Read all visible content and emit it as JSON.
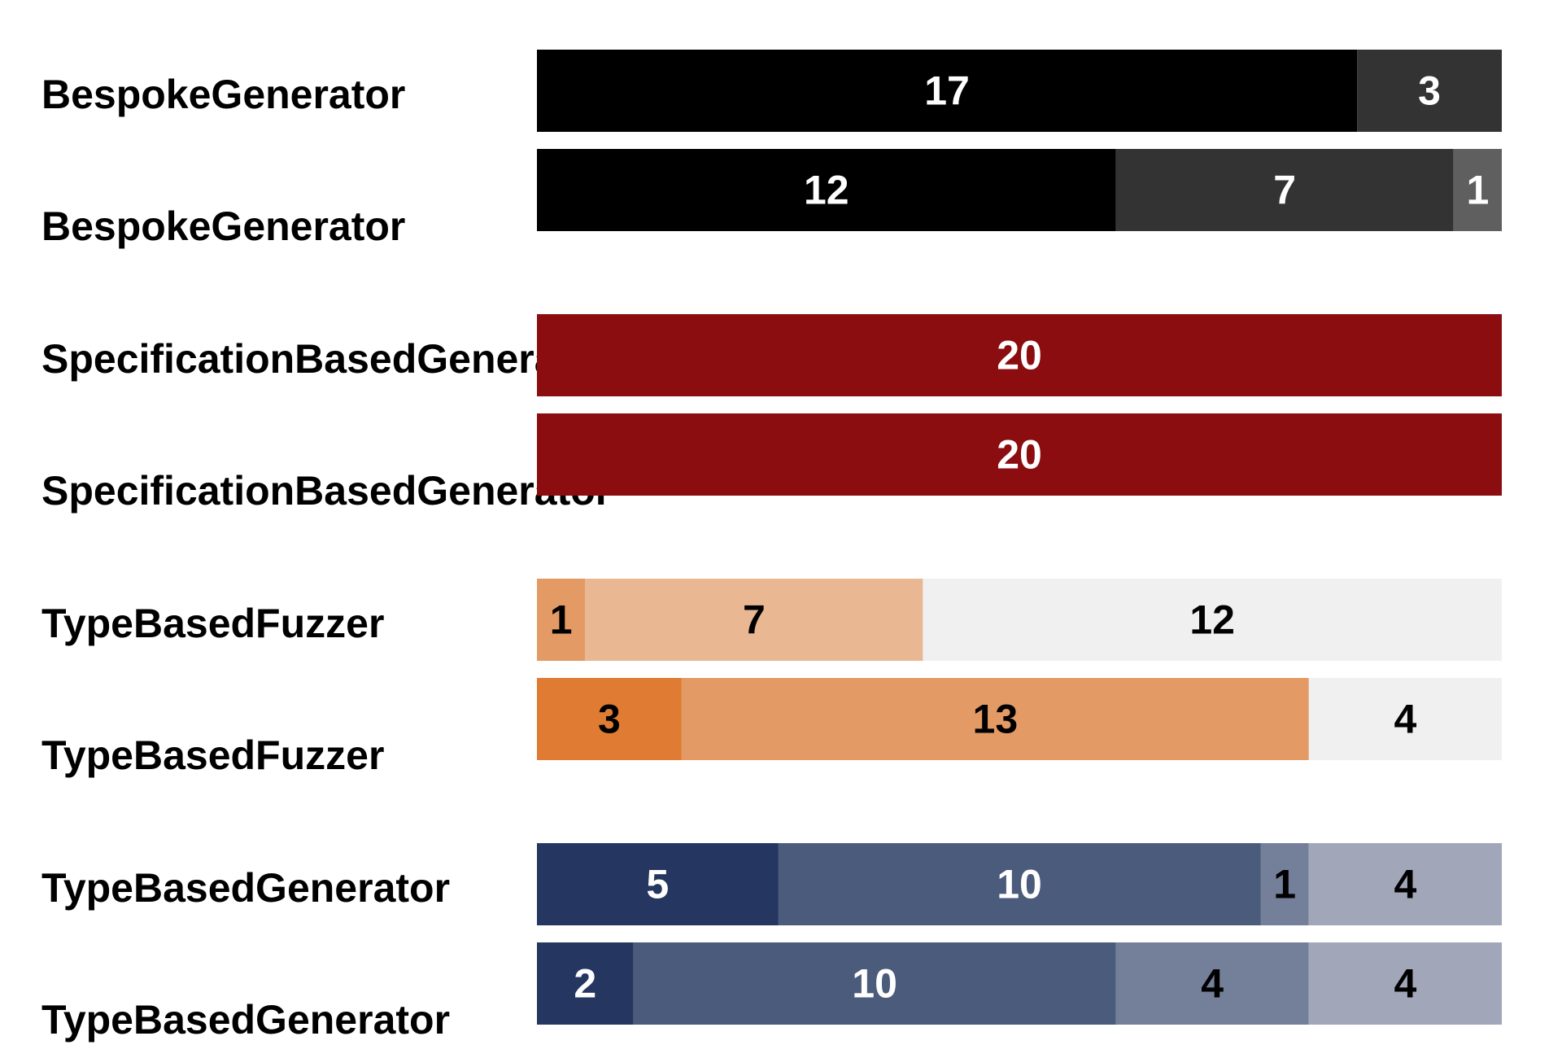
{
  "chart_data": {
    "type": "bar",
    "orientation": "horizontal",
    "stacked": true,
    "title": "",
    "xlabel": "",
    "ylabel": "",
    "xlim": [
      0,
      20
    ],
    "grid": false,
    "legend": "none",
    "rows": [
      {
        "label": "BespokeGenerator",
        "segments": [
          {
            "value": 17,
            "color": "#000000",
            "text_color": "#ffffff"
          },
          {
            "value": 3,
            "color": "#333333",
            "text_color": "#ffffff"
          }
        ]
      },
      {
        "label": "BespokeGenerator",
        "segments": [
          {
            "value": 12,
            "color": "#000000",
            "text_color": "#ffffff"
          },
          {
            "value": 7,
            "color": "#333333",
            "text_color": "#ffffff"
          },
          {
            "value": 1,
            "color": "#5f5f5f",
            "text_color": "#ffffff"
          }
        ]
      },
      {
        "label": "SpecificationBasedGenerator",
        "segments": [
          {
            "value": 20,
            "color": "#8b0d0f",
            "text_color": "#ffffff"
          }
        ]
      },
      {
        "label": "SpecificationBasedGenerator",
        "segments": [
          {
            "value": 20,
            "color": "#8b0d0f",
            "text_color": "#ffffff"
          }
        ]
      },
      {
        "label": "TypeBasedFuzzer",
        "segments": [
          {
            "value": 1,
            "color": "#e49a64",
            "text_color": "#000000"
          },
          {
            "value": 7,
            "color": "#e9b792",
            "text_color": "#000000"
          },
          {
            "value": 12,
            "color": "#f0f0f0",
            "text_color": "#000000"
          }
        ]
      },
      {
        "label": "TypeBasedFuzzer",
        "segments": [
          {
            "value": 3,
            "color": "#df7b32",
            "text_color": "#000000"
          },
          {
            "value": 13,
            "color": "#e49a64",
            "text_color": "#000000"
          },
          {
            "value": 4,
            "color": "#f0f0f0",
            "text_color": "#000000"
          }
        ]
      },
      {
        "label": "TypeBasedGenerator",
        "segments": [
          {
            "value": 5,
            "color": "#253760",
            "text_color": "#ffffff"
          },
          {
            "value": 10,
            "color": "#4b5b7c",
            "text_color": "#ffffff"
          },
          {
            "value": 1,
            "color": "#747f99",
            "text_color": "#000000"
          },
          {
            "value": 4,
            "color": "#a1a6b9",
            "text_color": "#000000"
          }
        ]
      },
      {
        "label": "TypeBasedGenerator",
        "segments": [
          {
            "value": 2,
            "color": "#253760",
            "text_color": "#ffffff"
          },
          {
            "value": 10,
            "color": "#4b5b7c",
            "text_color": "#ffffff"
          },
          {
            "value": 4,
            "color": "#747f99",
            "text_color": "#000000"
          },
          {
            "value": 4,
            "color": "#a1a6b9",
            "text_color": "#000000"
          }
        ]
      }
    ]
  }
}
